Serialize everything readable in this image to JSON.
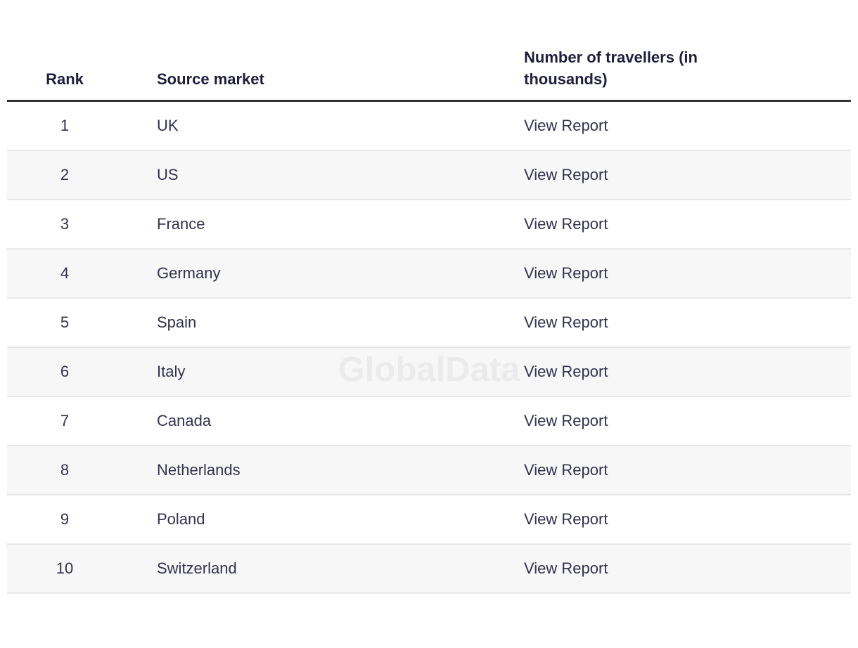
{
  "watermark": {
    "text": "GlobalData"
  },
  "colors": {
    "text_navy": "#32324d",
    "header_navy": "#1f1f3c",
    "header_rule": "#333333",
    "row_alt": "#f7f7f7",
    "watermark": "#f3f3f3"
  },
  "table": {
    "columns": {
      "rank": "Rank",
      "source_market": "Source market",
      "travellers": "Number of travellers (in thousands)"
    },
    "rows": [
      {
        "rank": "1",
        "source_market": "UK",
        "report_label": "View Report"
      },
      {
        "rank": "2",
        "source_market": "US",
        "report_label": "View Report"
      },
      {
        "rank": "3",
        "source_market": "France",
        "report_label": "View Report"
      },
      {
        "rank": "4",
        "source_market": "Germany",
        "report_label": "View Report"
      },
      {
        "rank": "5",
        "source_market": "Spain",
        "report_label": "View Report"
      },
      {
        "rank": "6",
        "source_market": "Italy",
        "report_label": "View Report"
      },
      {
        "rank": "7",
        "source_market": "Canada",
        "report_label": "View Report"
      },
      {
        "rank": "8",
        "source_market": "Netherlands",
        "report_label": "View Report"
      },
      {
        "rank": "9",
        "source_market": "Poland",
        "report_label": "View Report"
      },
      {
        "rank": "10",
        "source_market": "Switzerland",
        "report_label": "View Report"
      }
    ]
  }
}
